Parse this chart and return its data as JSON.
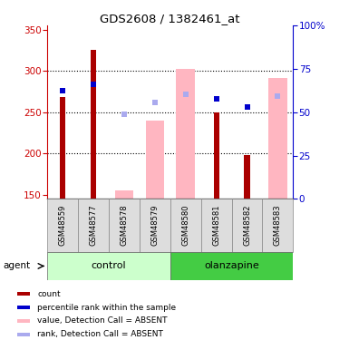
{
  "title": "GDS2608 / 1382461_at",
  "samples": [
    "GSM48559",
    "GSM48577",
    "GSM48578",
    "GSM48579",
    "GSM48580",
    "GSM48581",
    "GSM48582",
    "GSM48583"
  ],
  "groups": {
    "control": [
      0,
      1,
      2,
      3
    ],
    "olanzapine": [
      4,
      5,
      6,
      7
    ]
  },
  "ylim_left": [
    145,
    355
  ],
  "ylim_right": [
    0,
    100
  ],
  "yticks_left": [
    150,
    200,
    250,
    300,
    350
  ],
  "yticks_right": [
    0,
    25,
    50,
    75,
    100
  ],
  "bar_base": 145,
  "count_values": [
    268,
    325,
    null,
    null,
    null,
    250,
    198,
    null
  ],
  "count_color": "#AA0000",
  "absent_value_values": [
    null,
    null,
    155,
    240,
    302,
    null,
    null,
    292
  ],
  "absent_value_color": "#FFB6C1",
  "percentile_rank_values": [
    276,
    284,
    null,
    null,
    null,
    266,
    256,
    null
  ],
  "percentile_rank_color": "#0000CC",
  "absent_rank_values": [
    null,
    null,
    248,
    262,
    272,
    null,
    null,
    270
  ],
  "absent_rank_color": "#AAAAEE",
  "left_axis_color": "#CC0000",
  "right_axis_color": "#0000CC",
  "dotted_grid_values": [
    200,
    250,
    300
  ],
  "ctrl_color_light": "#CCFFCC",
  "olanz_color": "#44CC44",
  "legend_items": [
    {
      "label": "count",
      "color": "#AA0000"
    },
    {
      "label": "percentile rank within the sample",
      "color": "#0000CC"
    },
    {
      "label": "value, Detection Call = ABSENT",
      "color": "#FFB6C1"
    },
    {
      "label": "rank, Detection Call = ABSENT",
      "color": "#AAAAEE"
    }
  ]
}
